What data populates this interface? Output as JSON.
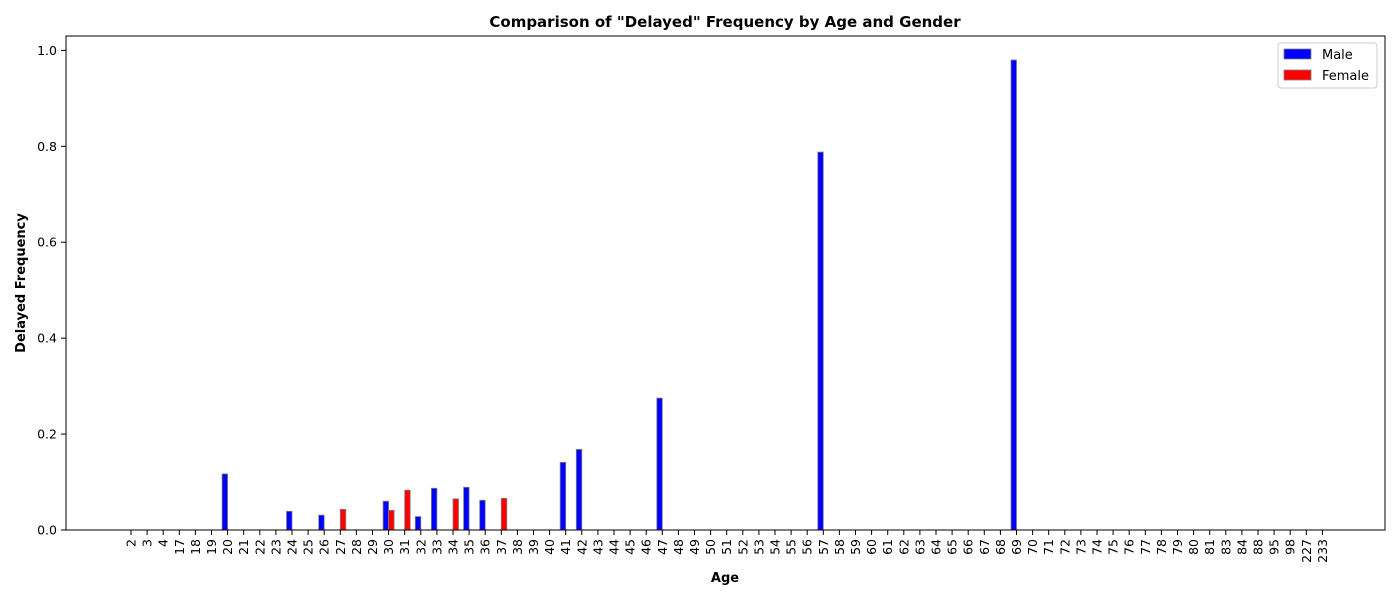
{
  "chart_data": {
    "type": "bar",
    "title": "Comparison of \"Delayed\" Frequency by Age and Gender",
    "xlabel": "Age",
    "ylabel": "Delayed Frequency",
    "ylim": [
      0,
      1.03
    ],
    "yticks": [
      "0.0",
      "0.2",
      "0.4",
      "0.6",
      "0.8",
      "1.0"
    ],
    "grid": false,
    "legend_position": "top-right",
    "categories": [
      "2",
      "3",
      "4",
      "17",
      "18",
      "19",
      "20",
      "21",
      "22",
      "23",
      "24",
      "25",
      "26",
      "27",
      "28",
      "29",
      "30",
      "31",
      "32",
      "33",
      "34",
      "35",
      "36",
      "37",
      "38",
      "39",
      "40",
      "41",
      "42",
      "43",
      "44",
      "45",
      "46",
      "47",
      "48",
      "49",
      "50",
      "51",
      "52",
      "53",
      "54",
      "55",
      "56",
      "57",
      "58",
      "59",
      "60",
      "61",
      "62",
      "63",
      "64",
      "65",
      "66",
      "67",
      "68",
      "69",
      "70",
      "71",
      "72",
      "73",
      "74",
      "75",
      "76",
      "77",
      "78",
      "79",
      "80",
      "81",
      "83",
      "84",
      "88",
      "95",
      "98",
      "227",
      "233"
    ],
    "series": [
      {
        "name": "Male",
        "color": "#0000ff",
        "values": [
          0,
          0,
          0,
          0,
          0,
          0,
          0.117,
          0,
          0,
          0,
          0.039,
          0,
          0.031,
          0,
          0,
          0,
          0.06,
          0,
          0.028,
          0.087,
          0,
          0.089,
          0.062,
          0,
          0,
          0,
          0,
          0.141,
          0.168,
          0,
          0,
          0,
          0,
          0.275,
          0,
          0,
          0,
          0,
          0,
          0,
          0,
          0,
          0,
          0.788,
          0,
          0,
          0,
          0,
          0,
          0,
          0,
          0,
          0,
          0,
          0,
          0.98,
          0,
          0,
          0,
          0,
          0,
          0,
          0,
          0,
          0,
          0,
          0,
          0,
          0,
          0,
          0,
          0,
          0,
          0,
          0
        ]
      },
      {
        "name": "Female",
        "color": "#ff0000",
        "values": [
          0,
          0,
          0,
          0,
          0,
          0,
          0,
          0,
          0,
          0,
          0,
          0,
          0,
          0.043,
          0,
          0,
          0.041,
          0.083,
          0,
          0,
          0.065,
          0,
          0,
          0.066,
          0,
          0,
          0,
          0,
          0,
          0,
          0,
          0,
          0,
          0,
          0,
          0,
          0,
          0,
          0,
          0,
          0,
          0,
          0,
          0,
          0,
          0,
          0,
          0,
          0,
          0,
          0,
          0,
          0,
          0,
          0,
          0,
          0,
          0,
          0,
          0,
          0,
          0,
          0,
          0,
          0,
          0,
          0,
          0,
          0,
          0,
          0,
          0,
          0,
          0,
          0
        ]
      }
    ]
  }
}
